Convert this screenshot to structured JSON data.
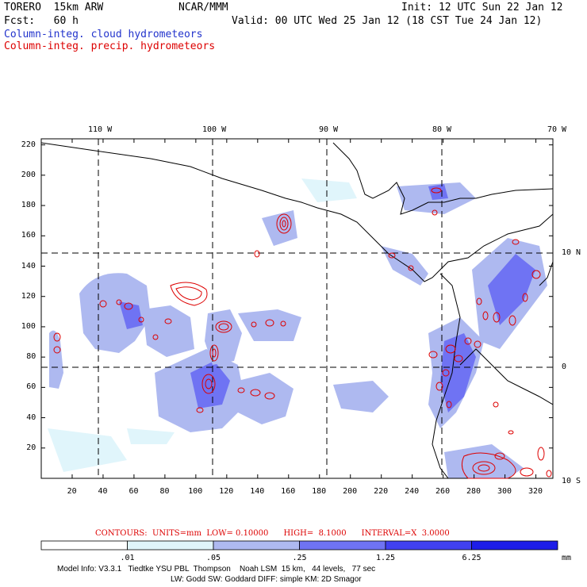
{
  "header": {
    "model": "TORERO  15km ARW",
    "org": "NCAR/MMM",
    "init": "Init: 12 UTC Sun 22 Jan 12",
    "fcst": "Fcst:   60 h",
    "valid": "Valid: 00 UTC Wed 25 Jan 12 (18 CST Tue 24 Jan 12)",
    "field_cloud": "Column-integ. cloud hydrometeors",
    "field_precip": "Column-integ. precip. hydrometeors"
  },
  "axes": {
    "lon_labels": [
      "110 W",
      "100 W",
      "90 W",
      "80 W",
      "70 W"
    ],
    "lat_labels": [
      "10 N",
      "0",
      "10 S"
    ],
    "x_ticks": [
      "20",
      "40",
      "60",
      "80",
      "100",
      "120",
      "140",
      "160",
      "180",
      "200",
      "220",
      "240",
      "260",
      "280",
      "300",
      "320"
    ],
    "y_ticks": [
      "20",
      "40",
      "60",
      "80",
      "100",
      "120",
      "140",
      "160",
      "180",
      "200",
      "220"
    ],
    "x_range": [
      0,
      331
    ],
    "y_range": [
      0,
      224
    ]
  },
  "contours_info": {
    "text": "CONTOURS:  UNITS=mm  LOW= 0.10000      HIGH=  8.1000      INTERVAL=X  3.0000"
  },
  "colorbar": {
    "labels": [
      ".01",
      ".05",
      ".25",
      "1.25",
      "6.25",
      "mm"
    ],
    "colors": [
      "#ffffff",
      "#e0f5fb",
      "#aeb9f0",
      "#6f73f3",
      "#4141f1",
      "#1d1de8"
    ]
  },
  "footer": {
    "line1": "Model Info: V3.3.1   Tiedtke YSU PBL  Thompson    Noah LSM  15 km,   44 levels,   77 sec",
    "line2": "LW: Godd SW: Goddard DIFF: simple KM: 2D Smagor"
  },
  "colors": {
    "cloud_title": "#2233cc",
    "precip_title": "#dd0000",
    "coast": "#000000",
    "contour": "#dd0000"
  }
}
